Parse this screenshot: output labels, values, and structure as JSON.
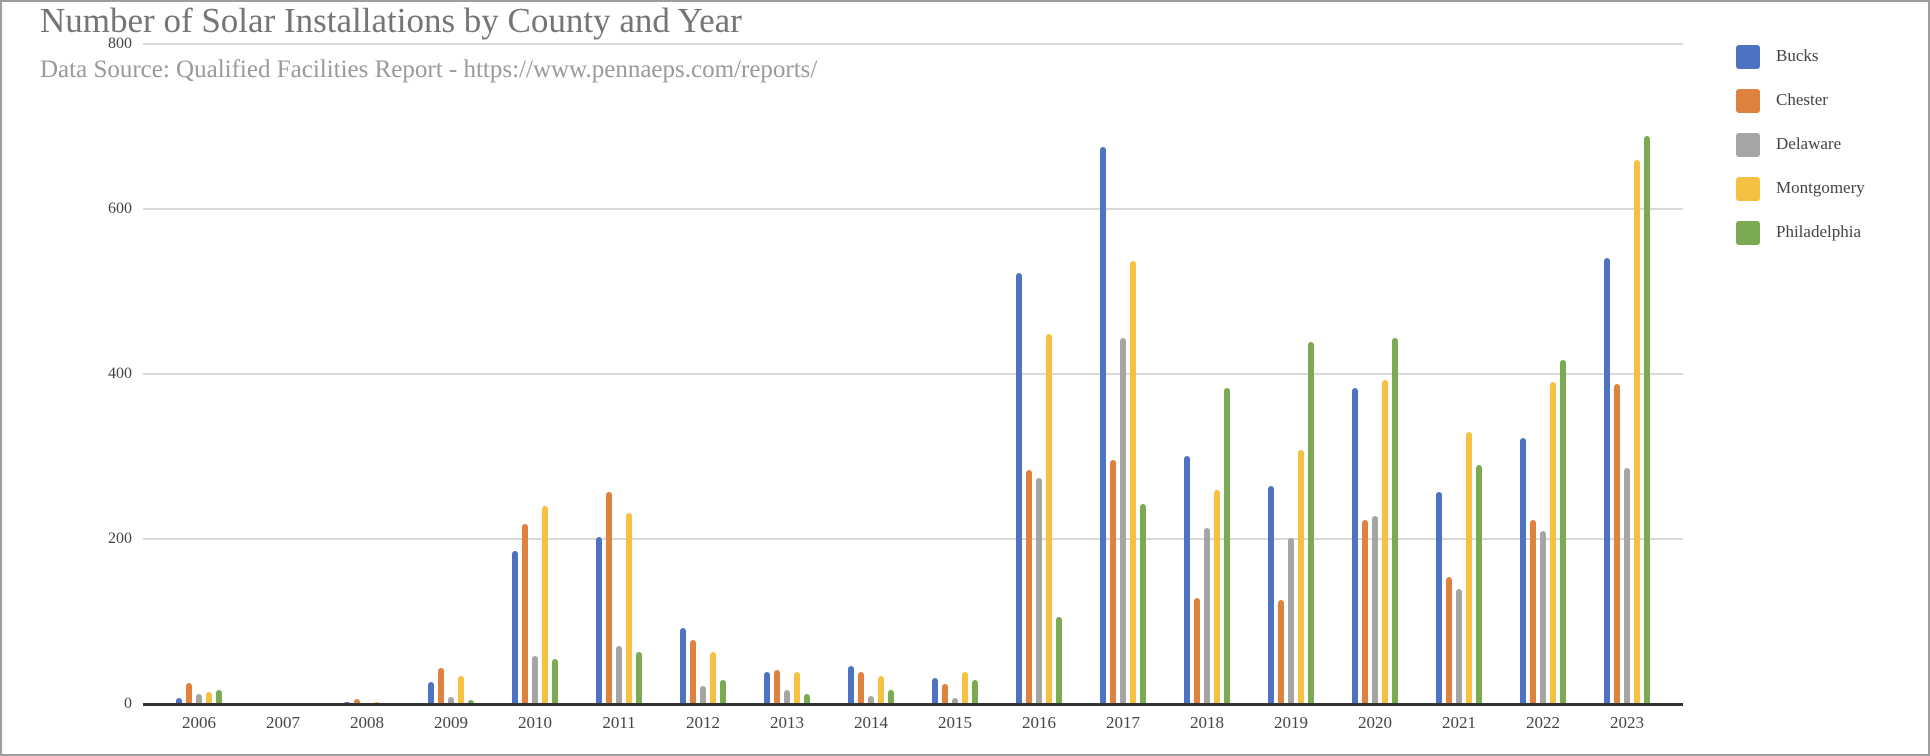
{
  "header": {
    "title": "Number of Solar Installations by County and Year",
    "subtitle": "Data Source: Qualified Facilities Report - https://www.pennaeps.com/reports/"
  },
  "legend": [
    {
      "label": "Bucks",
      "color": "#4e73c2"
    },
    {
      "label": "Chester",
      "color": "#e0823f"
    },
    {
      "label": "Delaware",
      "color": "#a5a5a5"
    },
    {
      "label": "Montgomery",
      "color": "#f6c142"
    },
    {
      "label": "Philadelphia",
      "color": "#7aab53"
    }
  ],
  "chart_data": {
    "type": "bar",
    "title": "Number of Solar Installations by County and Year",
    "subtitle": "Data Source: Qualified Facilities Report - https://www.pennaeps.com/reports/",
    "xlabel": "",
    "ylabel": "",
    "ylim": [
      0,
      800
    ],
    "yticks": [
      0,
      200,
      400,
      600,
      800
    ],
    "grid": true,
    "legend_position": "right",
    "categories": [
      "2006",
      "2007",
      "2008",
      "2009",
      "2010",
      "2011",
      "2012",
      "2013",
      "2014",
      "2015",
      "2016",
      "2017",
      "2018",
      "2019",
      "2020",
      "2021",
      "2022",
      "2023"
    ],
    "series": [
      {
        "name": "Bucks",
        "color": "#4e73c2",
        "values": [
          7,
          0,
          3,
          27,
          186,
          203,
          92,
          39,
          46,
          32,
          523,
          675,
          301,
          264,
          383,
          257,
          322,
          541
        ]
      },
      {
        "name": "Chester",
        "color": "#e0823f",
        "values": [
          25,
          0,
          6,
          44,
          218,
          257,
          78,
          41,
          39,
          24,
          284,
          296,
          128,
          126,
          223,
          154,
          223,
          388
        ]
      },
      {
        "name": "Delaware",
        "color": "#a5a5a5",
        "values": [
          12,
          0,
          0,
          9,
          58,
          70,
          22,
          17,
          10,
          7,
          274,
          444,
          213,
          201,
          228,
          140,
          210,
          286
        ]
      },
      {
        "name": "Montgomery",
        "color": "#f6c142",
        "values": [
          15,
          0,
          3,
          34,
          240,
          232,
          63,
          39,
          34,
          39,
          449,
          537,
          259,
          308,
          393,
          330,
          390,
          660
        ]
      },
      {
        "name": "Philadelphia",
        "color": "#7aab53",
        "values": [
          17,
          0,
          0,
          5,
          55,
          63,
          29,
          12,
          17,
          29,
          106,
          242,
          383,
          439,
          444,
          290,
          417,
          689
        ]
      }
    ]
  }
}
